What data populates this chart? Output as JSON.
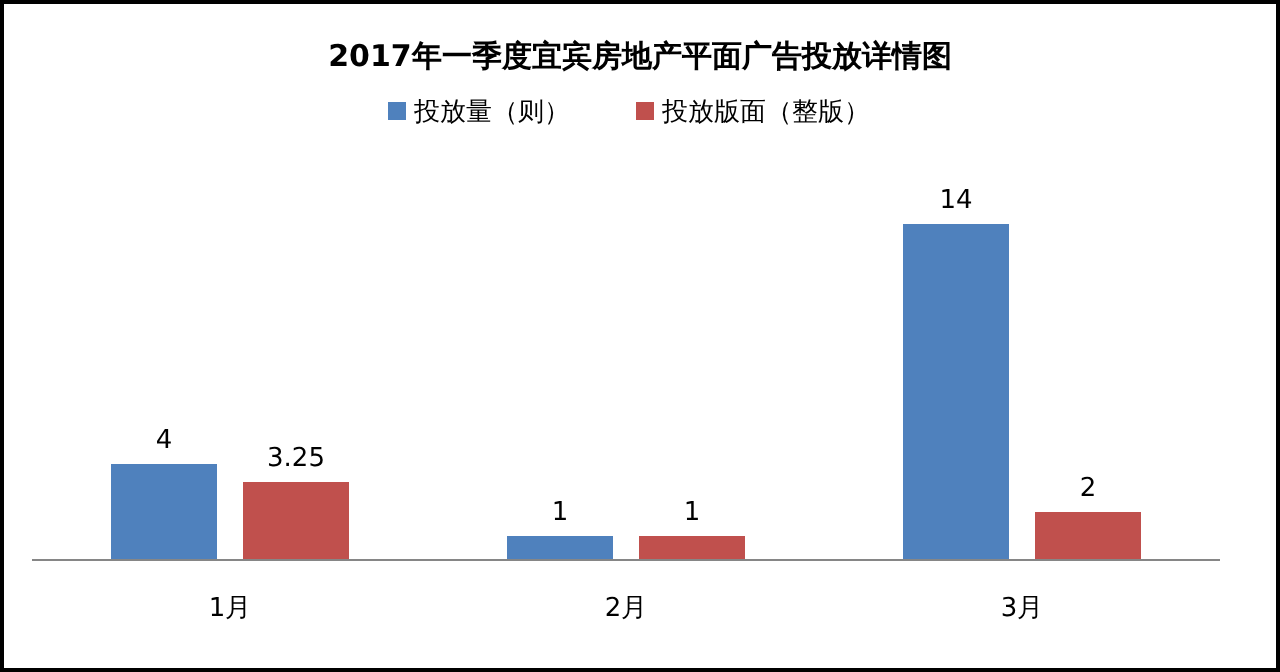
{
  "chart_data": {
    "type": "bar",
    "title": "2017年一季度宜宾房地产平面广告投放详情图",
    "categories": [
      "1月",
      "2月",
      "3月"
    ],
    "series": [
      {
        "name": "投放量（则）",
        "color": "#4f81bd",
        "values": [
          4,
          1,
          14
        ]
      },
      {
        "name": "投放版面（整版）",
        "color": "#c0504d",
        "values": [
          3.25,
          1,
          2
        ]
      }
    ],
    "data_labels": true,
    "legend": "top"
  }
}
